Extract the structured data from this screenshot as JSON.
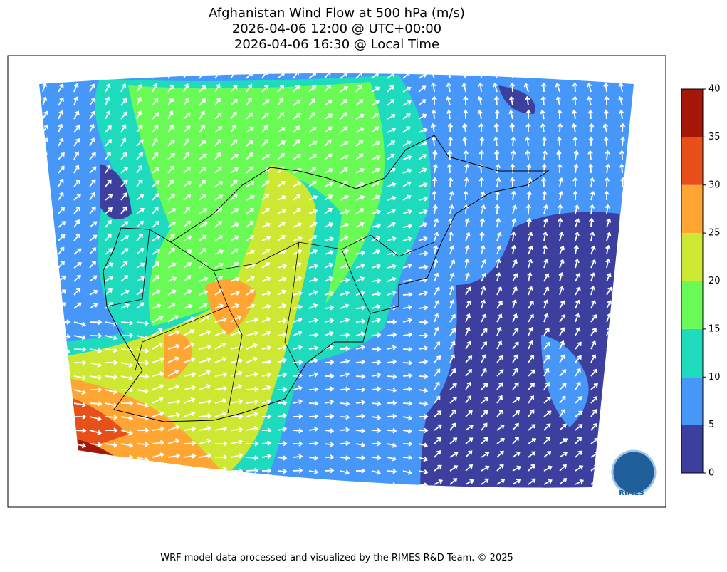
{
  "title": [
    "Afghanistan Wind Flow at 500 hPa (m/s)",
    "2026-04-06 12:00 @ UTC+00:00",
    "2026-04-06 16:30 @ Local Time"
  ],
  "colorbar": {
    "lim": [
      0,
      40
    ],
    "ticks": [
      0,
      5,
      10,
      15,
      20,
      25,
      30,
      35,
      40
    ],
    "colors": [
      "#3c3f9e",
      "#4697f8",
      "#1fdbbd",
      "#69fa55",
      "#cde833",
      "#ffa534",
      "#e8501a",
      "#a51708"
    ]
  },
  "logo": "RIMES",
  "footer": "WRF model data processed and visualized by the RIMES R&D Team. © 2025"
}
